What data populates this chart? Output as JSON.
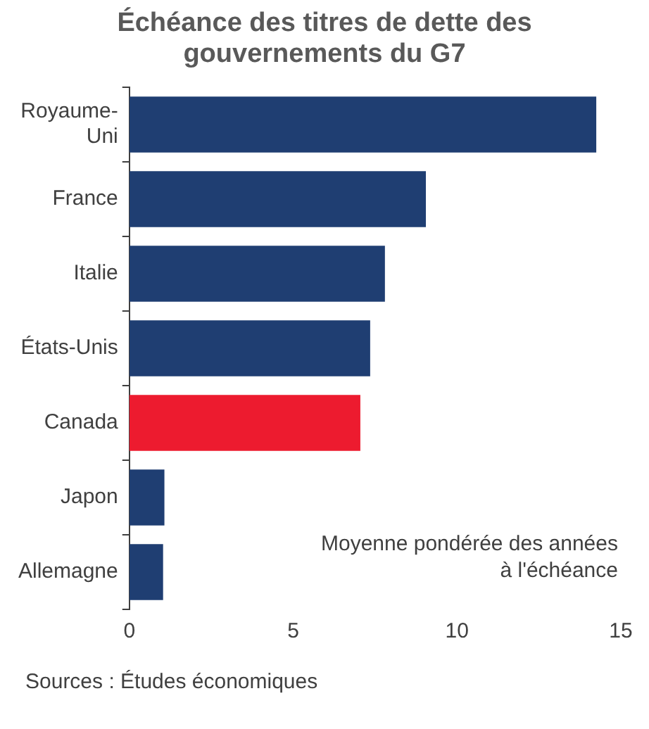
{
  "chart_data": {
    "type": "bar",
    "orientation": "horizontal",
    "title": "Échéance des titres de dette des gouvernements du G7",
    "categories": [
      "Royaume-Uni",
      "France",
      "Italie",
      "États-Unis",
      "Canada",
      "Japon",
      "Allemagne"
    ],
    "values": [
      14.25,
      9.05,
      7.8,
      7.35,
      7.05,
      1.07,
      1.03
    ],
    "colors": [
      "#1f3e72",
      "#1f3e72",
      "#1f3e72",
      "#1f3e72",
      "#ed1b2f",
      "#1f3e72",
      "#1f3e72"
    ],
    "xlim": [
      0,
      15
    ],
    "xticks": [
      0,
      5,
      10,
      15
    ],
    "grid": false,
    "annotations": [
      "Moyenne pondérée des années à l'échéance",
      "Sources : Études économiques"
    ]
  }
}
